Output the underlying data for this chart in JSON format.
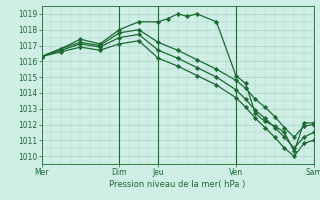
{
  "background_color": "#ceeee6",
  "grid_color": "#aad4c8",
  "line_color": "#1a6b30",
  "xlabel": "Pression niveau de la mer( hPa )",
  "ylim": [
    1009.5,
    1019.5
  ],
  "yticks": [
    1010,
    1011,
    1012,
    1013,
    1014,
    1015,
    1016,
    1017,
    1018,
    1019
  ],
  "xtick_labels": [
    "Mer",
    "Dim",
    "Jeu",
    "Ven",
    "Sam"
  ],
  "xtick_positions": [
    0,
    24,
    36,
    60,
    84
  ],
  "vlines": [
    24,
    36,
    60,
    84
  ],
  "lines": [
    {
      "x": [
        0,
        6,
        12,
        18,
        24,
        30,
        36,
        39,
        42,
        45,
        48,
        54,
        60,
        63,
        66,
        69,
        72,
        75,
        78,
        81,
        84
      ],
      "y": [
        1016.3,
        1016.8,
        1017.4,
        1017.1,
        1018.0,
        1018.5,
        1018.5,
        1018.7,
        1019.0,
        1018.85,
        1019.0,
        1018.5,
        1015.1,
        1014.6,
        1012.7,
        1012.2,
        1011.9,
        1011.5,
        1010.3,
        1012.1,
        1012.1
      ]
    },
    {
      "x": [
        0,
        6,
        12,
        18,
        24,
        30,
        36,
        42,
        48,
        54,
        60,
        63,
        66,
        69,
        72,
        75,
        78,
        81,
        84
      ],
      "y": [
        1016.3,
        1016.8,
        1017.2,
        1017.0,
        1017.8,
        1018.0,
        1017.2,
        1016.7,
        1016.1,
        1015.5,
        1014.8,
        1014.3,
        1013.6,
        1013.1,
        1012.5,
        1011.8,
        1011.2,
        1011.9,
        1012.0
      ]
    },
    {
      "x": [
        0,
        6,
        12,
        18,
        24,
        30,
        36,
        42,
        48,
        54,
        60,
        63,
        66,
        69,
        72,
        75,
        78,
        81,
        84
      ],
      "y": [
        1016.3,
        1016.7,
        1017.1,
        1016.9,
        1017.5,
        1017.7,
        1016.7,
        1016.2,
        1015.6,
        1015.0,
        1014.2,
        1013.6,
        1012.9,
        1012.4,
        1011.8,
        1011.2,
        1010.5,
        1011.2,
        1011.5
      ]
    },
    {
      "x": [
        0,
        6,
        12,
        18,
        24,
        30,
        36,
        42,
        48,
        54,
        60,
        63,
        66,
        69,
        72,
        75,
        78,
        81,
        84
      ],
      "y": [
        1016.3,
        1016.6,
        1016.9,
        1016.7,
        1017.1,
        1017.3,
        1016.2,
        1015.7,
        1015.1,
        1014.5,
        1013.7,
        1013.1,
        1012.4,
        1011.8,
        1011.2,
        1010.5,
        1010.0,
        1010.8,
        1011.0
      ]
    }
  ]
}
